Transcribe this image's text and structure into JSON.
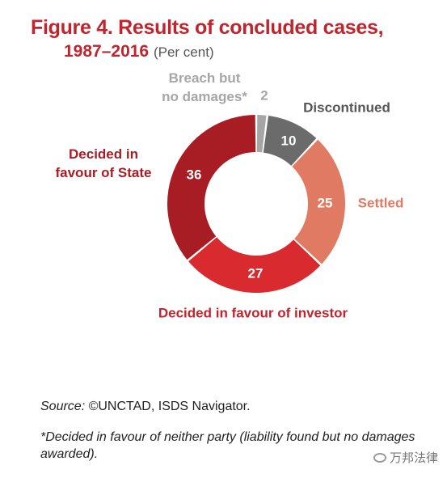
{
  "chart_data": {
    "type": "donut",
    "title": "Figure 4. Results of concluded cases,",
    "subtitle": "1987–2016",
    "unit": "(Per cent)",
    "slices": [
      {
        "label_lines": [
          "Breach but",
          "no damages*"
        ],
        "value": 2,
        "color": "#a6a6a6",
        "label_color": "#a6a6a6",
        "value_color": "#a6a6a6"
      },
      {
        "label_lines": [
          "Discontinued"
        ],
        "value": 10,
        "color": "#6b6b6b",
        "label_color": "#555555",
        "value_color": "#ffffff"
      },
      {
        "label_lines": [
          "Settled"
        ],
        "value": 25,
        "color": "#e07a62",
        "label_color": "#e07a62",
        "value_color": "#ffffff"
      },
      {
        "label_lines": [
          "Decided in favour of investor"
        ],
        "value": 27,
        "color": "#d92b2f",
        "label_color": "#c0252e",
        "value_color": "#ffffff"
      },
      {
        "label_lines": [
          "Decided in",
          "favour of State"
        ],
        "value": 36,
        "color": "#a81d24",
        "label_color": "#a81d24",
        "value_color": "#ffffff"
      }
    ]
  },
  "source": {
    "label": "Source:",
    "text": " ©UNCTAD, ISDS Navigator."
  },
  "footnote": "*Decided in favour of neither party (liability found but no damages awarded).",
  "watermark": "万邦法律"
}
